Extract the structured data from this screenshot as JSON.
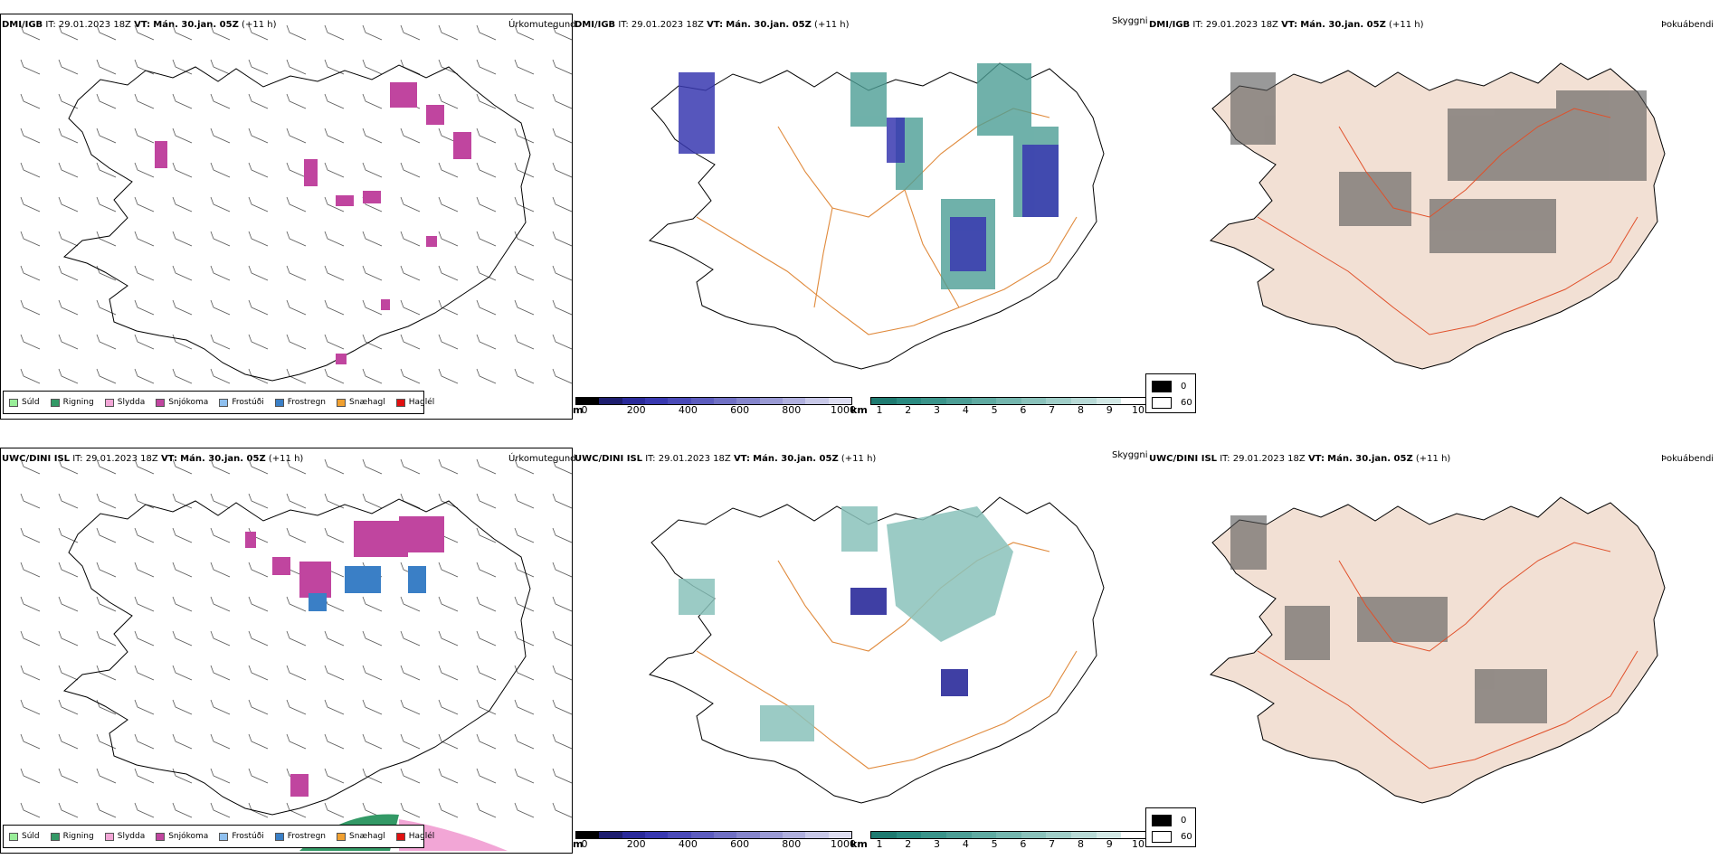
{
  "rows": [
    {
      "model": "DMI/IGB",
      "it_label": "IT:",
      "it_value": "29.01.2023 18Z",
      "vt_label": "VT:",
      "vt_value": "Mán. 30.jan. 05Z",
      "lead": "(+11 h)"
    },
    {
      "model": "UWC/DINI ISL",
      "it_label": "IT:",
      "it_value": "29.01.2023 18Z",
      "vt_label": "VT:",
      "vt_value": "Mán. 30.jan. 05Z",
      "lead": "(+11 h)"
    }
  ],
  "fields": {
    "precip_type": "Úrkomutegund",
    "visibility": "Skyggni",
    "fog": "Þokuábendi"
  },
  "precip_legend": [
    {
      "label": "Súld",
      "color": "#99ee99"
    },
    {
      "label": "Rigning",
      "color": "#339966"
    },
    {
      "label": "Slydda",
      "color": "#f2a6d6"
    },
    {
      "label": "Snjókoma",
      "color": "#c0459f"
    },
    {
      "label": "Frostúði",
      "color": "#8fc0ef"
    },
    {
      "label": "Frostregn",
      "color": "#3a7fc6"
    },
    {
      "label": "Snæhagl",
      "color": "#f0a030"
    },
    {
      "label": "Haglél",
      "color": "#e01010"
    }
  ],
  "visibility_legend": {
    "height_unit": "m",
    "height_ticks": [
      "0",
      "200",
      "400",
      "600",
      "800",
      "1000"
    ],
    "height_colors": [
      "#000000",
      "#1d1d6e",
      "#2a2a9a",
      "#3838b0",
      "#4a4ab8",
      "#5c5cbe",
      "#7070c4",
      "#8585cc",
      "#9a9ad4",
      "#b0b0de",
      "#c8c8e8",
      "#dcdcf0"
    ],
    "distance_unit": "km",
    "distance_ticks": [
      "1",
      "2",
      "3",
      "4",
      "5",
      "6",
      "7",
      "8",
      "9",
      "10"
    ],
    "distance_colors": [
      "#1e7a70",
      "#2a8a80",
      "#3a948a",
      "#4c9e95",
      "#5faaa1",
      "#74b6ae",
      "#8ac2bb",
      "#a0cec8",
      "#b8dad6",
      "#d2e8e5",
      "#ffffff"
    ]
  },
  "fog_legend": [
    {
      "label": "0",
      "color": "#000000"
    },
    {
      "label": "60",
      "color": "#ffffff"
    }
  ],
  "map_colors": {
    "land_fog": "#f2e0d4",
    "roads_vis": "#e08a3c",
    "roads_fog": "#e0502a",
    "rivers": "#8c9ee8",
    "coast": "#000000",
    "wind": "#555555"
  }
}
